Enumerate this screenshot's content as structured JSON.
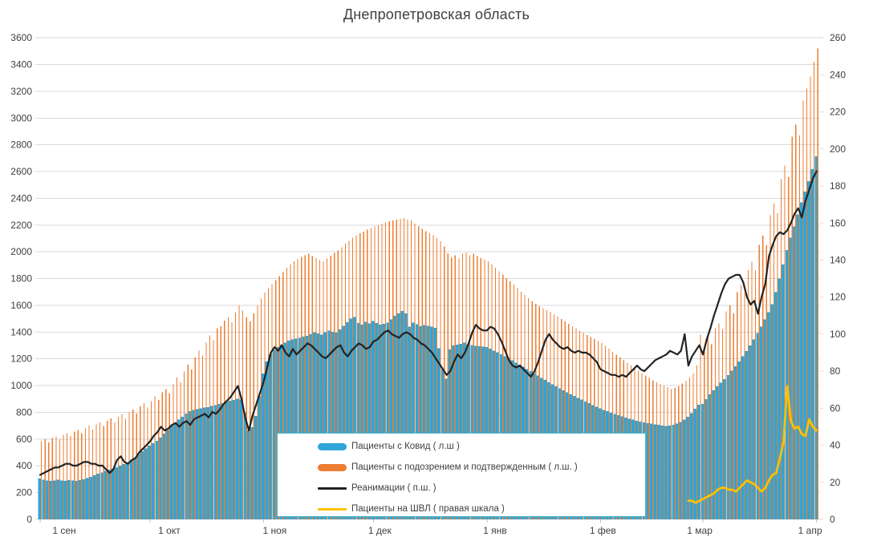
{
  "title": "Днепропетровская область",
  "colors": {
    "covid_bar": "#2fa5d8",
    "suspected_bar": "#ed7d31",
    "icu_line": "#222222",
    "ventilator_line": "#ffc000",
    "gridline": "#d9d9d9",
    "axis_text": "#404040",
    "legend_border": "#41b8d5"
  },
  "legend": {
    "items": [
      {
        "label": "Пациенты с Ковид ( л.ш )",
        "swatch": "pill",
        "color": "#2fa5d8"
      },
      {
        "label": "Пациенты с подозрением и подтвержденным ( л.ш. )",
        "swatch": "pill",
        "color": "#ed7d31"
      },
      {
        "label": "Реанимации ( п.ш. )",
        "swatch": "line",
        "color": "#222222"
      },
      {
        "label": "Пациенты на ШВЛ ( правая шкала )",
        "swatch": "line",
        "color": "#ffc000"
      }
    ]
  },
  "chart_data": {
    "type": "bar+line combo, daily data",
    "x_unit": "days from 1 Sep to 1 Apr (213 points)",
    "left_axis": {
      "min": 0,
      "max": 3600,
      "step": 200
    },
    "right_axis": {
      "min": 0,
      "max": 260,
      "step": 20
    },
    "grid": "horizontal only",
    "legend_position": "inside bottom center",
    "x_ticks": [
      {
        "day": 0,
        "label": "1 сен"
      },
      {
        "day": 30,
        "label": "1 окт"
      },
      {
        "day": 61,
        "label": "1 ноя"
      },
      {
        "day": 91,
        "label": "1 дек"
      },
      {
        "day": 122,
        "label": "1 янв"
      },
      {
        "day": 153,
        "label": "1 фев"
      },
      {
        "day": 181,
        "label": "1 мар"
      },
      {
        "day": 212,
        "label": "1 апр"
      }
    ],
    "series": [
      {
        "name": "Пациенты с Ковид ( л.ш )",
        "type": "bar",
        "axis": "left",
        "color": "#2fa5d8",
        "values": [
          305,
          298,
          292,
          288,
          292,
          296,
          291,
          287,
          293,
          290,
          288,
          294,
          300,
          308,
          318,
          330,
          341,
          352,
          362,
          371,
          380,
          390,
          400,
          412,
          426,
          443,
          462,
          484,
          508,
          530,
          552,
          570,
          588,
          612,
          640,
          668,
          700,
          722,
          745,
          768,
          790,
          810,
          818,
          825,
          830,
          835,
          840,
          848,
          855,
          862,
          870,
          878,
          886,
          894,
          902,
          895,
          798,
          665,
          690,
          772,
          920,
          1090,
          1180,
          1235,
          1268,
          1288,
          1305,
          1322,
          1335,
          1345,
          1352,
          1358,
          1365,
          1372,
          1385,
          1398,
          1390,
          1382,
          1398,
          1412,
          1402,
          1395,
          1420,
          1448,
          1475,
          1502,
          1512,
          1468,
          1455,
          1478,
          1465,
          1482,
          1468,
          1455,
          1462,
          1470,
          1495,
          1522,
          1540,
          1558,
          1540,
          1442,
          1470,
          1460,
          1445,
          1452,
          1448,
          1440,
          1432,
          1280,
          1120,
          1052,
          1270,
          1300,
          1305,
          1312,
          1320,
          1310,
          1304,
          1298,
          1295,
          1292,
          1288,
          1275,
          1262,
          1248,
          1235,
          1220,
          1205,
          1188,
          1170,
          1155,
          1140,
          1124,
          1108,
          1092,
          1075,
          1058,
          1042,
          1026,
          1010,
          995,
          980,
          965,
          950,
          936,
          922,
          908,
          895,
          882,
          868,
          855,
          842,
          830,
          819,
          808,
          798,
          788,
          779,
          770,
          761,
          752,
          745,
          738,
          732,
          726,
          720,
          715,
          710,
          706,
          702,
          698,
          700,
          706,
          715,
          728,
          745,
          768,
          795,
          828,
          858,
          862,
          900,
          935,
          965,
          995,
          1022,
          1050,
          1080,
          1112,
          1145,
          1180,
          1218,
          1258,
          1300,
          1345,
          1392,
          1442,
          1495,
          1550,
          1608,
          1700,
          1800,
          1905,
          2012,
          2105,
          2190,
          2280,
          2370,
          2450,
          2530,
          2620,
          2715
        ]
      },
      {
        "name": "Пациенты с подозрением и подтвержденным ( л.ш. )",
        "type": "bar",
        "axis": "left",
        "color": "#ed7d31",
        "values": [
          585,
          598,
          575,
          608,
          620,
          600,
          632,
          645,
          622,
          655,
          668,
          645,
          680,
          700,
          672,
          710,
          725,
          698,
          738,
          755,
          725,
          768,
          788,
          752,
          800,
          822,
          790,
          845,
          868,
          835,
          885,
          920,
          892,
          950,
          975,
          940,
          1010,
          1060,
          1025,
          1105,
          1155,
          1120,
          1210,
          1260,
          1225,
          1320,
          1375,
          1340,
          1430,
          1445,
          1485,
          1510,
          1475,
          1545,
          1600,
          1560,
          1510,
          1480,
          1540,
          1600,
          1650,
          1695,
          1730,
          1760,
          1790,
          1820,
          1850,
          1880,
          1905,
          1930,
          1948,
          1962,
          1975,
          1985,
          1968,
          1952,
          1938,
          1925,
          1950,
          1972,
          1992,
          2010,
          2035,
          2060,
          2082,
          2105,
          2122,
          2140,
          2152,
          2165,
          2178,
          2190,
          2200,
          2210,
          2220,
          2228,
          2235,
          2242,
          2248,
          2252,
          2242,
          2235,
          2212,
          2190,
          2172,
          2155,
          2140,
          2125,
          2102,
          2080,
          2040,
          1990,
          1955,
          1975,
          1950,
          1985,
          1995,
          1975,
          1985,
          1968,
          1952,
          1940,
          1928,
          1905,
          1880,
          1855,
          1832,
          1805,
          1780,
          1755,
          1728,
          1702,
          1678,
          1655,
          1630,
          1612,
          1595,
          1580,
          1565,
          1548,
          1530,
          1515,
          1498,
          1480,
          1462,
          1445,
          1428,
          1412,
          1395,
          1378,
          1362,
          1348,
          1332,
          1318,
          1298,
          1275,
          1252,
          1232,
          1210,
          1190,
          1170,
          1150,
          1130,
          1112,
          1092,
          1075,
          1058,
          1040,
          1025,
          1010,
          998,
          988,
          975,
          982,
          995,
          1015,
          1038,
          1060,
          1090,
          1150,
          1380,
          1290,
          1360,
          1310,
          1430,
          1465,
          1420,
          1555,
          1600,
          1540,
          1700,
          1752,
          1690,
          1865,
          1925,
          1860,
          2052,
          2120,
          2050,
          2275,
          2360,
          2290,
          2545,
          2645,
          2560,
          2860,
          2950,
          2870,
          3130,
          3220,
          3310,
          3420,
          3520
        ]
      },
      {
        "name": "Реанимации ( п.ш. )",
        "type": "line",
        "axis": "right",
        "color": "#222222",
        "values": [
          24,
          25,
          26,
          27,
          28,
          28,
          29,
          30,
          30,
          29,
          29,
          30,
          31,
          31,
          30,
          30,
          29,
          29,
          27,
          25,
          27,
          32,
          34,
          31,
          30,
          32,
          33,
          36,
          38,
          40,
          42,
          45,
          47,
          50,
          48,
          49,
          51,
          52,
          50,
          52,
          53,
          51,
          54,
          55,
          56,
          57,
          55,
          58,
          57,
          59,
          62,
          64,
          66,
          69,
          72,
          65,
          55,
          48,
          56,
          62,
          68,
          74,
          82,
          90,
          93,
          91,
          94,
          90,
          88,
          92,
          89,
          91,
          93,
          95,
          94,
          92,
          90,
          88,
          87,
          89,
          91,
          93,
          94,
          90,
          88,
          91,
          93,
          95,
          94,
          92,
          93,
          96,
          97,
          99,
          101,
          102,
          100,
          99,
          98,
          100,
          101,
          100,
          98,
          97,
          95,
          94,
          92,
          90,
          87,
          84,
          81,
          78,
          80,
          85,
          89,
          87,
          90,
          95,
          101,
          105,
          103,
          102,
          102,
          104,
          103,
          100,
          96,
          91,
          86,
          83,
          82,
          83,
          81,
          79,
          77,
          80,
          85,
          91,
          97,
          100,
          97,
          95,
          93,
          92,
          93,
          91,
          90,
          91,
          90,
          90,
          89,
          87,
          85,
          81,
          80,
          79,
          78,
          78,
          77,
          78,
          77,
          79,
          81,
          83,
          81,
          80,
          82,
          84,
          86,
          87,
          88,
          89,
          91,
          90,
          89,
          91,
          100,
          83,
          88,
          91,
          94,
          89,
          97,
          103,
          110,
          116,
          122,
          127,
          130,
          131,
          132,
          132,
          128,
          120,
          116,
          118,
          111,
          120,
          127,
          142,
          148,
          153,
          155,
          154,
          156,
          160,
          165,
          168,
          163,
          172,
          178,
          184,
          188
        ]
      },
      {
        "name": "Пациенты на ШВЛ ( правая шкала )",
        "type": "line",
        "axis": "right",
        "color": "#ffc000",
        "start_day": 177,
        "values": [
          10,
          10,
          9,
          10,
          11,
          12,
          13,
          14,
          16,
          17,
          17,
          16,
          16,
          15,
          17,
          19,
          21,
          20,
          19,
          17,
          15,
          17,
          21,
          24,
          25,
          33,
          42,
          72,
          53,
          49,
          50,
          46,
          45,
          54,
          50,
          48
        ]
      }
    ]
  }
}
